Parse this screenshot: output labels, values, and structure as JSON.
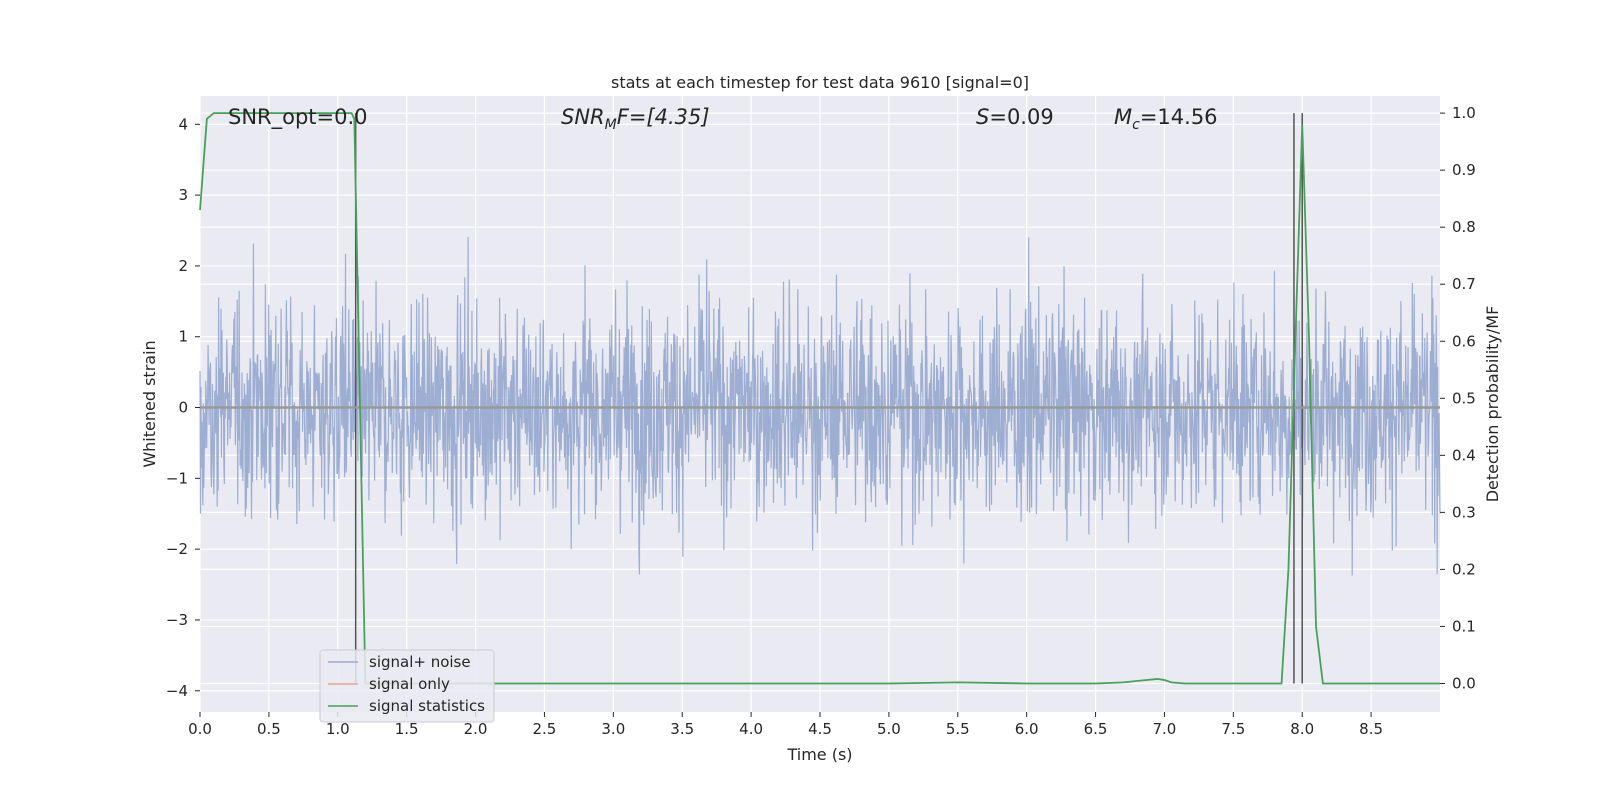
{
  "chart_data": {
    "type": "line",
    "title": "stats at each timestep for test data 9610 [signal=0]",
    "xlabel": "Time (s)",
    "ylabel": "Whitened strain",
    "y2label": "Detection probability/MF",
    "xlim": [
      0,
      9
    ],
    "ylim": [
      -4.3,
      4.4
    ],
    "y2lim": [
      -0.05,
      1.03
    ],
    "x_ticks": [
      "0.0",
      "0.5",
      "1.0",
      "1.5",
      "2.0",
      "2.5",
      "3.0",
      "3.5",
      "4.0",
      "4.5",
      "5.0",
      "5.5",
      "6.0",
      "6.5",
      "7.0",
      "7.5",
      "8.0",
      "8.5"
    ],
    "y_ticks": [
      "4",
      "3",
      "2",
      "1",
      "0",
      "−1",
      "−2",
      "−3",
      "−4"
    ],
    "y2_ticks": [
      "1.0",
      "0.9",
      "0.8",
      "0.7",
      "0.6",
      "0.5",
      "0.4",
      "0.3",
      "0.2",
      "0.1",
      "0.0"
    ],
    "annotations": {
      "snr_opt": "SNR_opt=0.0",
      "snr_mf_main": "SNR",
      "snr_mf_sub": "M",
      "snr_mf_rest": "F=[4.35]",
      "s_main": "S",
      "s_rest": "=0.09",
      "mc_main": "M",
      "mc_sub": "c",
      "mc_rest": "=14.56"
    },
    "grid": true,
    "legend_position": "lower left",
    "series": [
      {
        "name": "signal+ noise",
        "color": "#99abd0",
        "description_range": [
          -3.9,
          3.8
        ],
        "noise_band": [
          -1.6,
          1.6
        ]
      },
      {
        "name": "signal only",
        "color": "#e8a487",
        "y": 0.0
      },
      {
        "name": "signal statistics",
        "color": "#4aa05a",
        "x": [
          0.0,
          0.05,
          0.1,
          0.3,
          0.6,
          0.9,
          1.1,
          1.12,
          1.16,
          1.2,
          1.3,
          2.0,
          3.0,
          4.0,
          5.0,
          5.5,
          6.0,
          6.5,
          6.7,
          6.95,
          7.0,
          7.05,
          7.15,
          7.5,
          7.85,
          7.9,
          7.95,
          8.0,
          8.05,
          8.1,
          8.15,
          8.5,
          9.0
        ],
        "y": [
          0.83,
          0.99,
          1.0,
          1.0,
          1.0,
          1.0,
          1.0,
          0.99,
          0.5,
          0.0,
          0.0,
          0.0,
          0.0,
          0.0,
          0.0,
          0.002,
          0.0,
          0.0,
          0.002,
          0.008,
          0.006,
          0.002,
          0.0,
          0.0,
          0.0,
          0.2,
          0.6,
          0.98,
          0.6,
          0.1,
          0.0,
          0.0,
          0.0
        ]
      }
    ],
    "vertical_markers_x": [
      1.13,
      7.94,
      8.0
    ]
  },
  "legend": {
    "items": [
      "signal+ noise",
      "signal only",
      "signal statistics"
    ]
  }
}
